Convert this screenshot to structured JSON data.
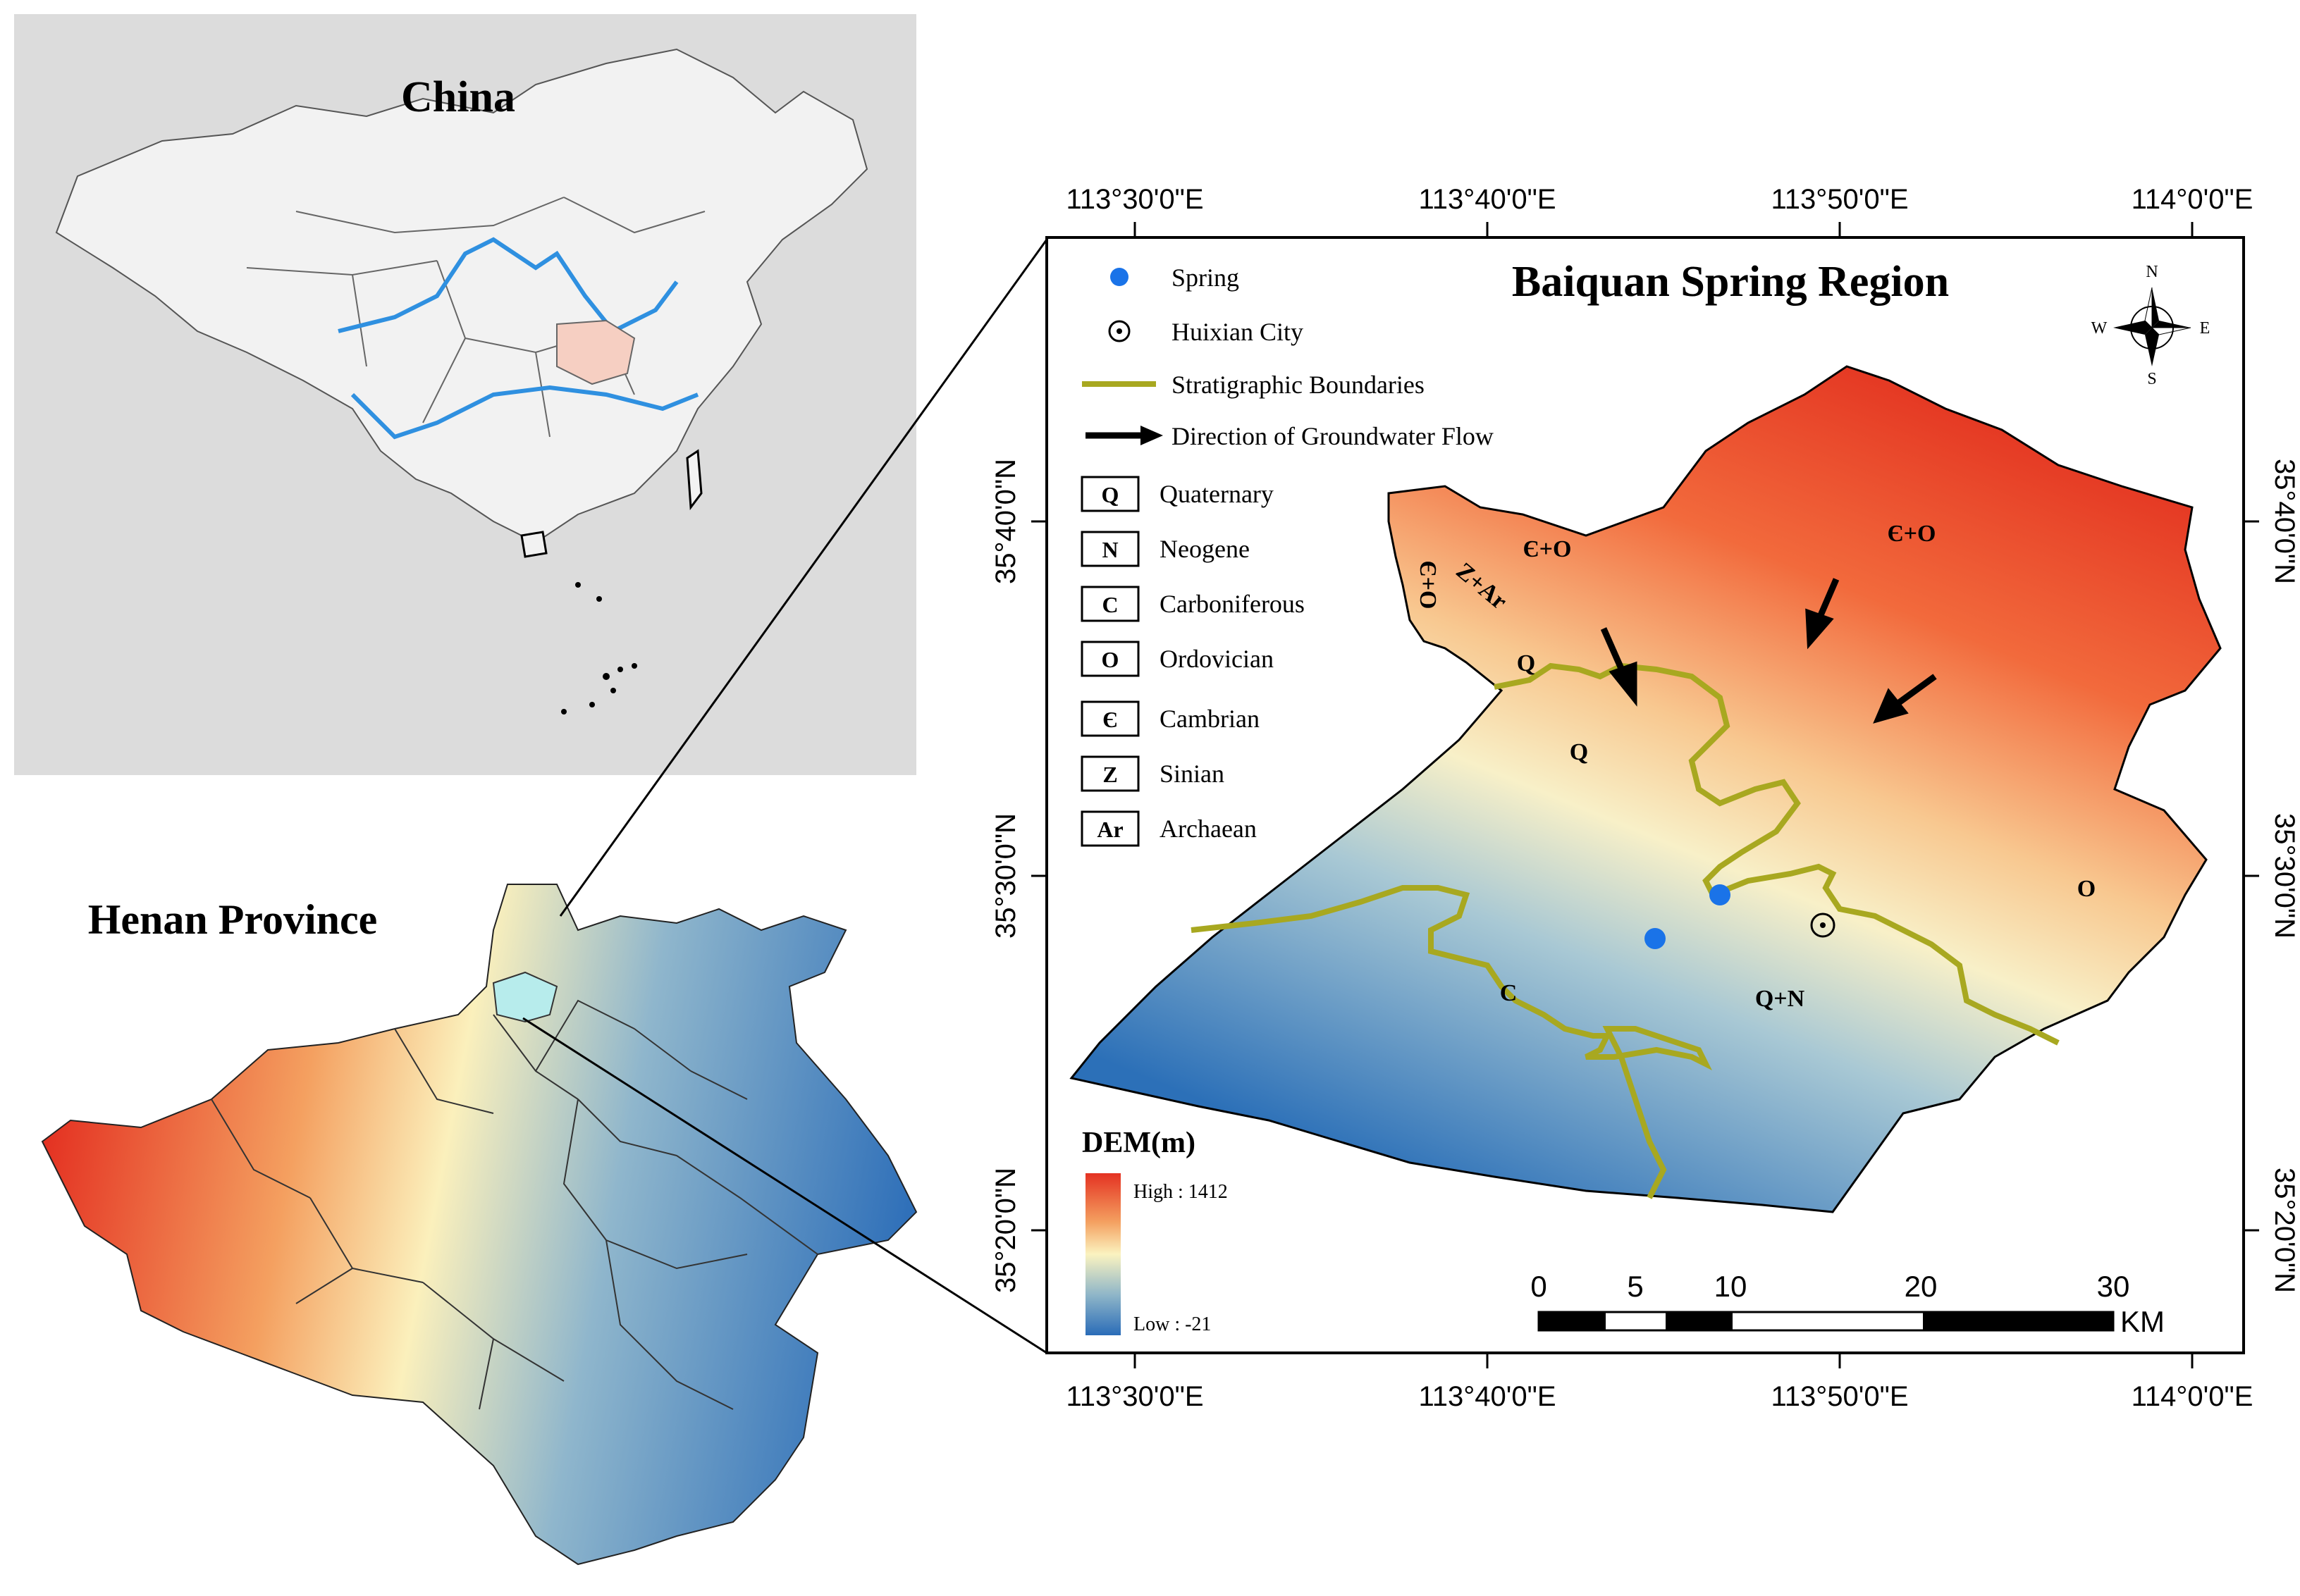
{
  "china": {
    "title": "China"
  },
  "henan": {
    "title": "Henan Province"
  },
  "main": {
    "title": "Baiquan Spring Region",
    "top_ticks": [
      "113°30'0\"E",
      "113°40'0\"E",
      "113°50'0\"E",
      "114°0'0\"E"
    ],
    "bottom_ticks": [
      "113°30'0\"E",
      "113°40'0\"E",
      "113°50'0\"E",
      "114°0'0\"E"
    ],
    "left_ticks": [
      "35°40'0\"N",
      "35°30'0\"N",
      "35°20'0\"N"
    ],
    "right_ticks": [
      "35°40'0\"N",
      "35°30'0\"N",
      "35°20'0\"N"
    ],
    "compass": {
      "n": "N",
      "s": "S",
      "e": "E",
      "w": "W"
    },
    "legend": {
      "spring": "Spring",
      "city": "Huixian City",
      "boundary": "Stratigraphic Boundaries",
      "flow": "Direction of Groundwater Flow",
      "strata": [
        {
          "code": "Q",
          "name": "Quaternary"
        },
        {
          "code": "N",
          "name": "Neogene"
        },
        {
          "code": "C",
          "name": "Carboniferous"
        },
        {
          "code": "O",
          "name": "Ordovician"
        },
        {
          "code": "Є",
          "name": "Cambrian"
        },
        {
          "code": "Z",
          "name": "Sinian"
        },
        {
          "code": "Ar",
          "name": "Archaean"
        }
      ]
    },
    "dem": {
      "title": "DEM(m)",
      "high": "High : 1412",
      "low": "Low : -21"
    },
    "scale": {
      "labels": [
        "0",
        "5",
        "10",
        "20",
        "30"
      ],
      "unit": "KM"
    },
    "regions": {
      "co_nw": "Є+O",
      "co_ne": "Є+O",
      "zar": "Z+Ar",
      "co_side": "Є+O",
      "q_top": "Q",
      "q_mid": "Q",
      "c": "C",
      "qn": "Q+N",
      "o": "O"
    },
    "colors": {
      "boundary": "#a8a820",
      "spring": "#1a73e8",
      "high": "#e03020",
      "low": "#2a6cb8"
    }
  }
}
